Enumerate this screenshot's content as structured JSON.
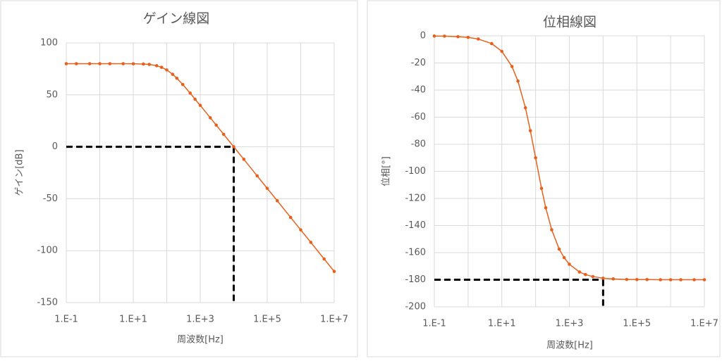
{
  "chart_data": [
    {
      "type": "line",
      "title": "ゲイン線図",
      "x_label": "周波数[Hz]",
      "y_label": "ゲイン[dB]",
      "log_x": true,
      "grid": true,
      "x": [
        0.1,
        0.2,
        0.5,
        1,
        2,
        5,
        10,
        20,
        30,
        50,
        70,
        100,
        150,
        200,
        300,
        500,
        700,
        1000,
        2000,
        3000,
        5000,
        10000,
        20000,
        50000,
        100000,
        200000,
        500000,
        1000000,
        2000000,
        5000000,
        10000000
      ],
      "series": [
        {
          "name": "ゲイン",
          "color": "#e8601c",
          "values": [
            80,
            80,
            80,
            80,
            80,
            80,
            79.9,
            79.7,
            79.3,
            78.1,
            76.5,
            74.0,
            69.8,
            66.0,
            60.0,
            51.7,
            45.8,
            39.9,
            27.9,
            20.9,
            12.0,
            0.0,
            -12.0,
            -28.0,
            -40.0,
            -52.0,
            -68.0,
            -80.0,
            -92.0,
            -108.0,
            -120.0
          ]
        }
      ],
      "xlim": [
        0.1,
        10000000
      ],
      "xticks": [
        {
          "value": 0.1,
          "label": "1.E-1"
        },
        {
          "value": 10,
          "label": "1.E+1"
        },
        {
          "value": 1000,
          "label": "1.E+3"
        },
        {
          "value": 100000,
          "label": "1.E+5"
        },
        {
          "value": 10000000,
          "label": "1.E+7"
        }
      ],
      "x_minor_grid": [
        1,
        100,
        10000,
        1000000
      ],
      "ylim": [
        -150,
        100
      ],
      "yticks": [
        -150,
        -100,
        -50,
        0,
        50,
        100
      ],
      "ref_x": 10000,
      "ref_y": 0
    },
    {
      "type": "line",
      "title": "位相線図",
      "x_label": "周波数[Hz]",
      "y_label": "位相[°]",
      "log_x": true,
      "grid": true,
      "x": [
        0.1,
        0.2,
        0.5,
        1,
        2,
        5,
        10,
        20,
        30,
        50,
        70,
        100,
        150,
        200,
        300,
        500,
        700,
        1000,
        2000,
        3000,
        5000,
        10000,
        20000,
        50000,
        100000,
        200000,
        500000,
        1000000,
        2000000,
        5000000,
        10000000
      ],
      "series": [
        {
          "name": "位相",
          "color": "#e8601c",
          "values": [
            -0.1,
            -0.2,
            -0.6,
            -1.1,
            -2.3,
            -5.7,
            -11.4,
            -22.6,
            -33.4,
            -53.1,
            -70.0,
            -90.0,
            -112.6,
            -126.9,
            -143.1,
            -157.4,
            -163.7,
            -168.6,
            -174.3,
            -176.2,
            -177.7,
            -178.9,
            -179.4,
            -179.8,
            -179.9,
            -179.9,
            -180.0,
            -180.0,
            -180.0,
            -180.0,
            -180.0
          ]
        }
      ],
      "xlim": [
        0.1,
        10000000
      ],
      "xticks": [
        {
          "value": 0.1,
          "label": "1.E-1"
        },
        {
          "value": 10,
          "label": "1.E+1"
        },
        {
          "value": 1000,
          "label": "1.E+3"
        },
        {
          "value": 100000,
          "label": "1.E+5"
        },
        {
          "value": 10000000,
          "label": "1.E+7"
        }
      ],
      "x_minor_grid": [
        1,
        100,
        10000,
        1000000
      ],
      "ylim": [
        -200,
        0
      ],
      "yticks": [
        -200,
        -180,
        -160,
        -140,
        -120,
        -100,
        -80,
        -60,
        -40,
        -20,
        0
      ],
      "ref_x": 10000,
      "ref_y": -180
    }
  ]
}
